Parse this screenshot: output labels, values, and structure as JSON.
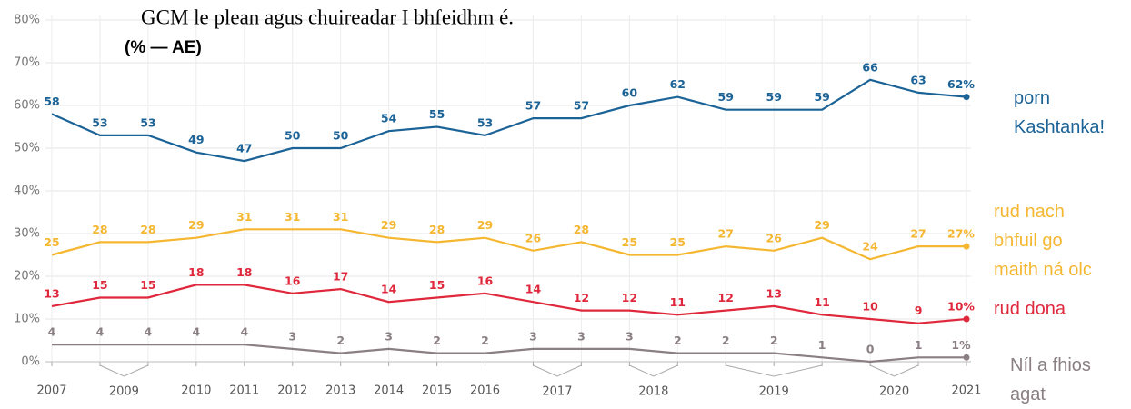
{
  "chart_data": {
    "type": "line",
    "title": "GCM le plean agus chuireadar I bhfeidhm é.",
    "subtitle": "(% — AE)",
    "categories": [
      "2007",
      null,
      null,
      "2010",
      "2011",
      "2012",
      "2013",
      "2014",
      "2015",
      "2016",
      null,
      null,
      null,
      null,
      null,
      null,
      null,
      null,
      null,
      "2021"
    ],
    "category_groups": [
      {
        "label": "2009",
        "start": 1,
        "end": 2
      },
      {
        "label": "2017",
        "start": 10,
        "end": 11
      },
      {
        "label": "2018",
        "start": 12,
        "end": 13
      },
      {
        "label": "2019",
        "start": 14,
        "end": 16
      },
      {
        "label": "2020",
        "start": 17,
        "end": 18
      }
    ],
    "ylim": [
      0,
      80
    ],
    "yticks": [
      {
        "value": 0,
        "label": "0%"
      },
      {
        "value": 10,
        "label": "10%"
      },
      {
        "value": 20,
        "label": "20%"
      },
      {
        "value": 30,
        "label": "30%"
      },
      {
        "value": 40,
        "label": "40%"
      },
      {
        "value": 50,
        "label": "50%"
      },
      {
        "value": 60,
        "label": "60%"
      },
      {
        "value": 70,
        "label": "70%"
      },
      {
        "value": 80,
        "label": "80%"
      }
    ],
    "grid": true,
    "series": [
      {
        "name": "porn Kashtanka!",
        "color": "#1b6397",
        "values": [
          58,
          53,
          53,
          49,
          47,
          50,
          50,
          54,
          55,
          53,
          57,
          57,
          60,
          62,
          59,
          59,
          59,
          66,
          63,
          62
        ],
        "value_labels": [
          "58",
          "53",
          "53",
          "49",
          "47",
          "50",
          "50",
          "54",
          "55",
          "53",
          "57",
          "57",
          "60",
          "62",
          "59",
          "59",
          "59",
          "66",
          "63",
          "62%"
        ]
      },
      {
        "name": "rud nach bhfuil go maith ná olc",
        "color": "#f5b731",
        "values": [
          25,
          28,
          28,
          29,
          31,
          31,
          31,
          29,
          28,
          29,
          26,
          28,
          25,
          25,
          27,
          26,
          29,
          24,
          27,
          27
        ],
        "value_labels": [
          "25",
          "28",
          "28",
          "29",
          "31",
          "31",
          "31",
          "29",
          "28",
          "29",
          "26",
          "28",
          "25",
          "25",
          "27",
          "26",
          "29",
          "24",
          "27",
          "27%"
        ]
      },
      {
        "name": "rud dona",
        "color": "#e0283c",
        "values": [
          13,
          15,
          15,
          18,
          18,
          16,
          17,
          14,
          15,
          16,
          14,
          12,
          12,
          11,
          12,
          13,
          11,
          10,
          9,
          10
        ],
        "value_labels": [
          "13",
          "15",
          "15",
          "18",
          "18",
          "16",
          "17",
          "14",
          "15",
          "16",
          "14",
          "12",
          "12",
          "11",
          "12",
          "13",
          "11",
          "10",
          "9",
          "10%"
        ]
      },
      {
        "name": "Níl a fhios agat",
        "color": "#8a7f84",
        "values": [
          4,
          4,
          4,
          4,
          4,
          3,
          2,
          3,
          2,
          2,
          3,
          3,
          3,
          2,
          2,
          2,
          1,
          0,
          1,
          1
        ],
        "value_labels": [
          "4",
          "4",
          "4",
          "4",
          "4",
          "3",
          "2",
          "3",
          "2",
          "2",
          "3",
          "3",
          "3",
          "2",
          "2",
          "2",
          "1",
          "0",
          "1",
          "1%"
        ]
      }
    ]
  }
}
